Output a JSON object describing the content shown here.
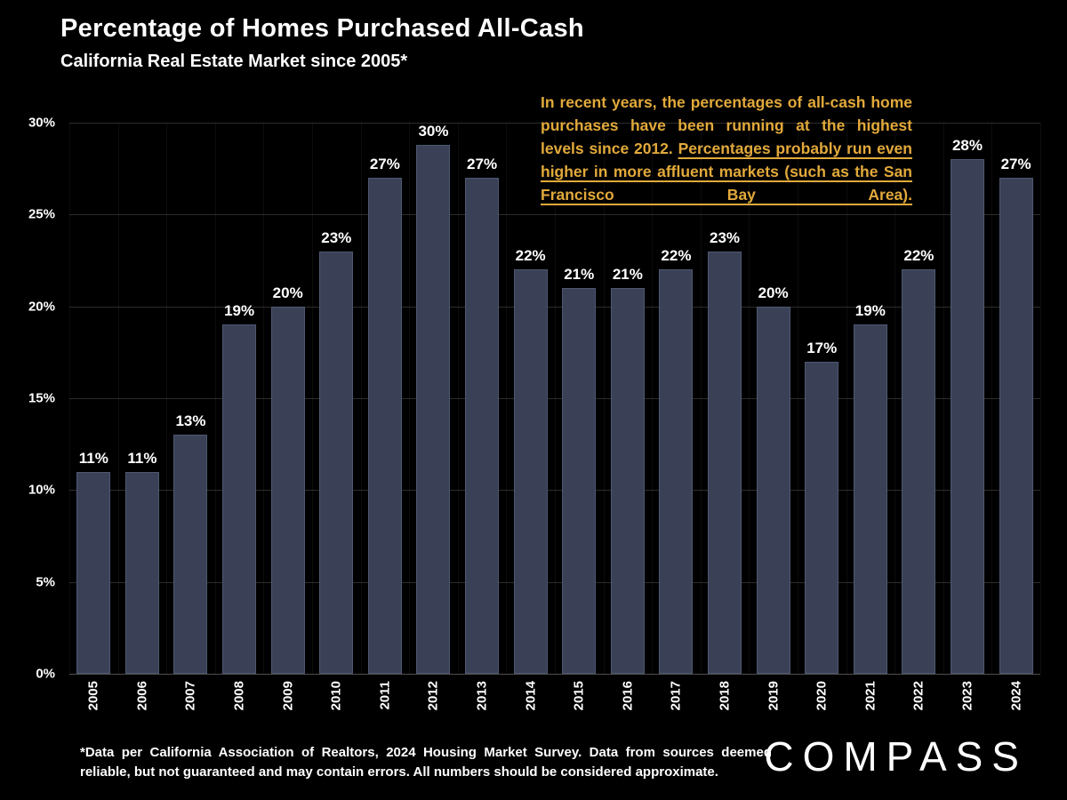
{
  "header": {
    "title": "Percentage of Homes Purchased All-Cash",
    "subtitle": "California Real Estate Market since 2005*"
  },
  "annotation": {
    "plain": "In recent years, the percentages of all-cash home purchases have been running at the highest levels since 2012. ",
    "underlined": "Percentages probably run even higher in more affluent markets (such as the San Francisco Bay Area)."
  },
  "footnote": "*Data per California Association of Realtors, 2024 Housing Market Survey. Data from sources deemed reliable, but not guaranteed and may contain errors. All numbers should be considered approximate.",
  "logo": "COMPASS",
  "colors": {
    "background": "#000000",
    "bar": "#3a4156",
    "bar_border": "#4d5870",
    "annotation_gold": "#e2a93b",
    "text": "#ffffff",
    "grid": "#2c2c2c"
  },
  "chart_data": {
    "type": "bar",
    "title": "Percentage of Homes Purchased All-Cash",
    "subtitle": "California Real Estate Market since 2005*",
    "categories": [
      "2005",
      "2006",
      "2007",
      "2008",
      "2009",
      "2010",
      "2011",
      "2012",
      "2013",
      "2014",
      "2015",
      "2016",
      "2017",
      "2018",
      "2019",
      "2020",
      "2021",
      "2022",
      "2023",
      "2024"
    ],
    "values": [
      11,
      11,
      13,
      19,
      20,
      23,
      27,
      30,
      27,
      22,
      21,
      21,
      22,
      23,
      20,
      17,
      19,
      22,
      28,
      27
    ],
    "value_labels": [
      "11%",
      "11%",
      "13%",
      "19%",
      "20%",
      "23%",
      "27%",
      "30%",
      "27%",
      "22%",
      "21%",
      "21%",
      "22%",
      "23%",
      "20%",
      "17%",
      "19%",
      "22%",
      "28%",
      "27%"
    ],
    "xlabel": "",
    "ylabel": "",
    "ylim": [
      0,
      30
    ],
    "yticks": [
      "0%",
      "5%",
      "10%",
      "15%",
      "20%",
      "25%",
      "30%"
    ],
    "grid": "horizontal",
    "legend": "none"
  }
}
